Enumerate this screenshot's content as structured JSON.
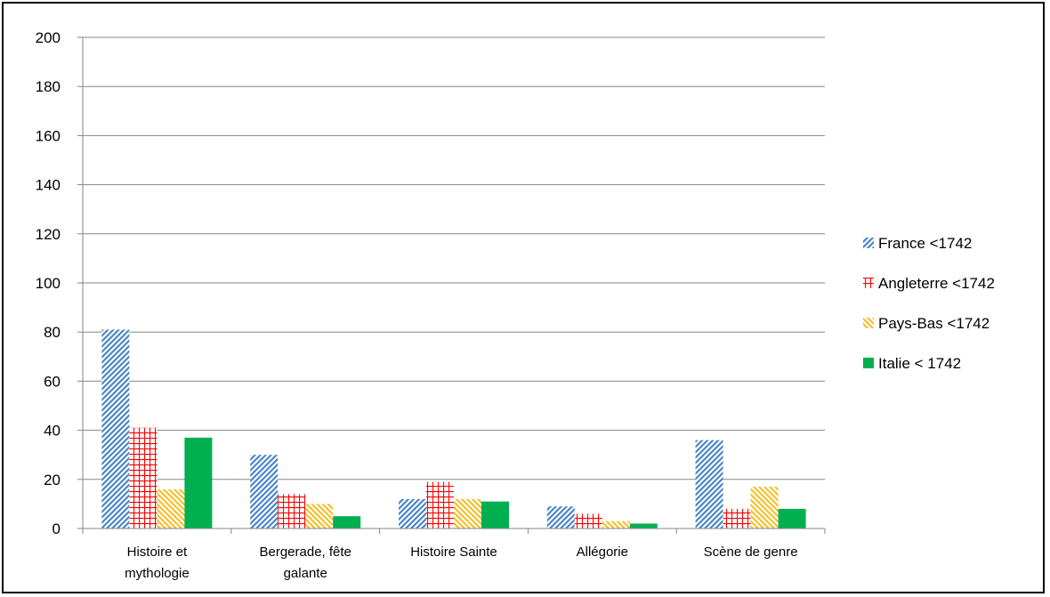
{
  "chart_data": {
    "type": "bar",
    "title": "",
    "xlabel": "",
    "ylabel": "",
    "ylim": [
      0,
      200
    ],
    "yticks": [
      0,
      20,
      40,
      60,
      80,
      100,
      120,
      140,
      160,
      180,
      200
    ],
    "grid": true,
    "legend_position": "right",
    "categories": [
      [
        "Histoire et",
        "mythologie"
      ],
      [
        "Bergerade, fête",
        "galante"
      ],
      [
        "Histoire Sainte"
      ],
      [
        "Allégorie"
      ],
      [
        "Scène de genre"
      ]
    ],
    "series": [
      {
        "name": "France <1742",
        "values": [
          81,
          30,
          12,
          9,
          36
        ],
        "color": "#4a86c8",
        "pattern": "diagonal-up"
      },
      {
        "name": "Angleterre  <1742",
        "values": [
          41,
          14,
          19,
          6,
          8
        ],
        "color": "#ff0000",
        "pattern": "grid"
      },
      {
        "name": "Pays-Bas  <1742",
        "values": [
          16,
          10,
          12,
          3,
          17
        ],
        "color": "#f5c02a",
        "pattern": "diagonal-down"
      },
      {
        "name": "Italie  < 1742",
        "values": [
          37,
          5,
          11,
          2,
          8
        ],
        "color": "#00b050",
        "pattern": "solid"
      }
    ]
  }
}
